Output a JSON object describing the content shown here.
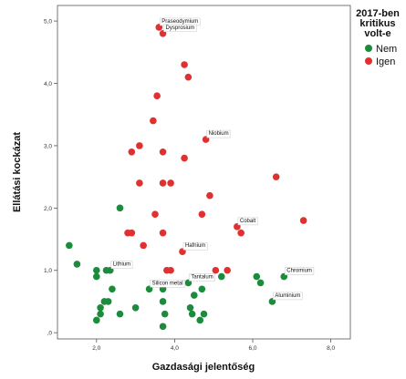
{
  "chart_data": {
    "type": "scatter",
    "xlabel": "Gazdasági jelentőség",
    "ylabel": "Ellátási kockázat",
    "xlim": [
      1.0,
      8.5
    ],
    "ylim": [
      -0.1,
      5.25
    ],
    "x_ticks": [
      2.0,
      4.0,
      6.0,
      8.0
    ],
    "x_tick_labels": [
      "2,0",
      "4,0",
      "6,0",
      "8,0"
    ],
    "y_ticks": [
      0,
      1,
      2,
      3,
      4,
      5
    ],
    "y_tick_labels": [
      ",0",
      "1,0",
      "2,0",
      "3,0",
      "4,0",
      "5,0"
    ],
    "grid": false,
    "legend": {
      "title_lines": [
        "2017-ben",
        "kritikus",
        "volt-e"
      ],
      "placement": "right",
      "entries": [
        {
          "label": "Nem",
          "color": "#1a8c3c"
        },
        {
          "label": "Igen",
          "color": "#e03030"
        }
      ]
    },
    "series": [
      {
        "name": "Nem",
        "color": "#1a8c3c",
        "points": [
          {
            "x": 1.3,
            "y": 1.4
          },
          {
            "x": 1.5,
            "y": 1.1
          },
          {
            "x": 2.0,
            "y": 1.0
          },
          {
            "x": 2.0,
            "y": 0.9
          },
          {
            "x": 2.25,
            "y": 1.0
          },
          {
            "x": 2.35,
            "y": 1.0
          },
          {
            "x": 2.4,
            "y": 0.7
          },
          {
            "x": 2.2,
            "y": 0.5
          },
          {
            "x": 2.3,
            "y": 0.5
          },
          {
            "x": 2.1,
            "y": 0.4
          },
          {
            "x": 2.1,
            "y": 0.3
          },
          {
            "x": 2.0,
            "y": 0.2
          },
          {
            "x": 2.6,
            "y": 0.3
          },
          {
            "x": 2.6,
            "y": 2.0
          },
          {
            "x": 3.0,
            "y": 0.4
          },
          {
            "x": 3.35,
            "y": 0.7
          },
          {
            "x": 3.7,
            "y": 0.7
          },
          {
            "x": 3.7,
            "y": 0.5
          },
          {
            "x": 3.75,
            "y": 0.3
          },
          {
            "x": 3.7,
            "y": 0.1
          },
          {
            "x": 4.35,
            "y": 0.8
          },
          {
            "x": 4.5,
            "y": 0.6
          },
          {
            "x": 4.4,
            "y": 0.4
          },
          {
            "x": 4.45,
            "y": 0.3
          },
          {
            "x": 4.65,
            "y": 0.2
          },
          {
            "x": 4.7,
            "y": 0.7
          },
          {
            "x": 4.75,
            "y": 0.3
          },
          {
            "x": 5.2,
            "y": 0.9
          },
          {
            "x": 6.1,
            "y": 0.9
          },
          {
            "x": 6.2,
            "y": 0.8
          },
          {
            "x": 6.5,
            "y": 0.5
          },
          {
            "x": 6.8,
            "y": 0.9
          }
        ]
      },
      {
        "name": "Igen",
        "color": "#e03030",
        "points": [
          {
            "x": 3.6,
            "y": 4.9
          },
          {
            "x": 3.7,
            "y": 4.8
          },
          {
            "x": 4.25,
            "y": 4.3
          },
          {
            "x": 4.35,
            "y": 4.1
          },
          {
            "x": 3.55,
            "y": 3.8
          },
          {
            "x": 3.45,
            "y": 3.4
          },
          {
            "x": 3.1,
            "y": 3.0
          },
          {
            "x": 2.9,
            "y": 2.9
          },
          {
            "x": 3.7,
            "y": 2.9
          },
          {
            "x": 4.25,
            "y": 2.8
          },
          {
            "x": 4.8,
            "y": 3.1
          },
          {
            "x": 3.1,
            "y": 2.4
          },
          {
            "x": 3.7,
            "y": 2.4
          },
          {
            "x": 3.9,
            "y": 2.4
          },
          {
            "x": 4.9,
            "y": 2.2
          },
          {
            "x": 6.6,
            "y": 2.5
          },
          {
            "x": 3.5,
            "y": 1.9
          },
          {
            "x": 4.7,
            "y": 1.9
          },
          {
            "x": 2.8,
            "y": 1.6
          },
          {
            "x": 2.9,
            "y": 1.6
          },
          {
            "x": 3.7,
            "y": 1.6
          },
          {
            "x": 5.6,
            "y": 1.7
          },
          {
            "x": 5.7,
            "y": 1.6
          },
          {
            "x": 7.3,
            "y": 1.8
          },
          {
            "x": 3.2,
            "y": 1.4
          },
          {
            "x": 4.2,
            "y": 1.3
          },
          {
            "x": 3.8,
            "y": 1.0
          },
          {
            "x": 3.9,
            "y": 1.0
          },
          {
            "x": 5.05,
            "y": 1.0
          },
          {
            "x": 5.35,
            "y": 1.0
          }
        ]
      }
    ],
    "annotations": [
      {
        "text": "Praseodymium",
        "x": 3.6,
        "y": 4.9
      },
      {
        "text": "Dysprosium",
        "x": 3.7,
        "y": 4.8
      },
      {
        "text": "Niobium",
        "x": 4.8,
        "y": 3.1
      },
      {
        "text": "Cobalt",
        "x": 5.6,
        "y": 1.7
      },
      {
        "text": "Hafnium",
        "x": 4.2,
        "y": 1.3
      },
      {
        "text": "Lithium",
        "x": 2.35,
        "y": 1.0
      },
      {
        "text": "Silicon metal",
        "x": 3.35,
        "y": 0.7
      },
      {
        "text": "Tantalum",
        "x": 4.35,
        "y": 0.8
      },
      {
        "text": "Chromium",
        "x": 6.8,
        "y": 0.9
      },
      {
        "text": "Aluminium",
        "x": 6.5,
        "y": 0.5
      }
    ]
  }
}
